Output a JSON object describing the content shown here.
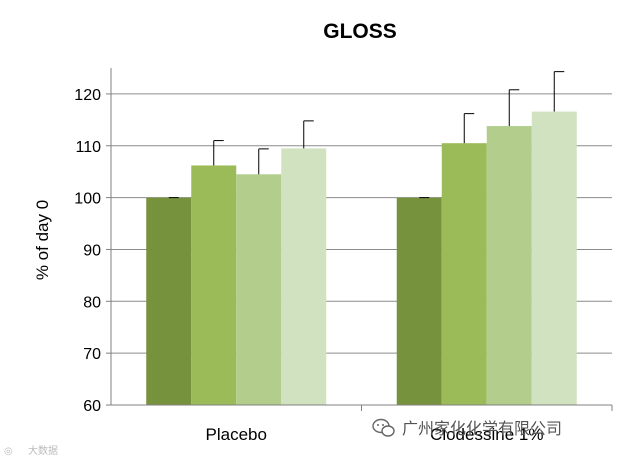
{
  "chart_data": {
    "type": "bar",
    "title": "GLOSS",
    "ylabel": "% of day 0",
    "xlabel": "",
    "ylim": [
      60,
      125
    ],
    "yticks": [
      60,
      70,
      80,
      90,
      100,
      110,
      120
    ],
    "grid": true,
    "categories": [
      "Placebo",
      "Clodessine 1%"
    ],
    "series": [
      {
        "values": [
          100,
          100
        ],
        "error": [
          0,
          0
        ],
        "color": "#77923c"
      },
      {
        "values": [
          106.2,
          110.5
        ],
        "error": [
          4.8,
          5.7
        ],
        "color": "#9bbb59"
      },
      {
        "values": [
          104.5,
          113.8
        ],
        "error": [
          4.9,
          7.0
        ],
        "color": "#b2cd8c"
      },
      {
        "values": [
          109.5,
          116.6
        ],
        "error": [
          5.3,
          7.7
        ],
        "color": "#d1e2c0"
      }
    ]
  },
  "watermark": {
    "text": "广州家化化学有限公司",
    "corner_text": "大数据"
  }
}
